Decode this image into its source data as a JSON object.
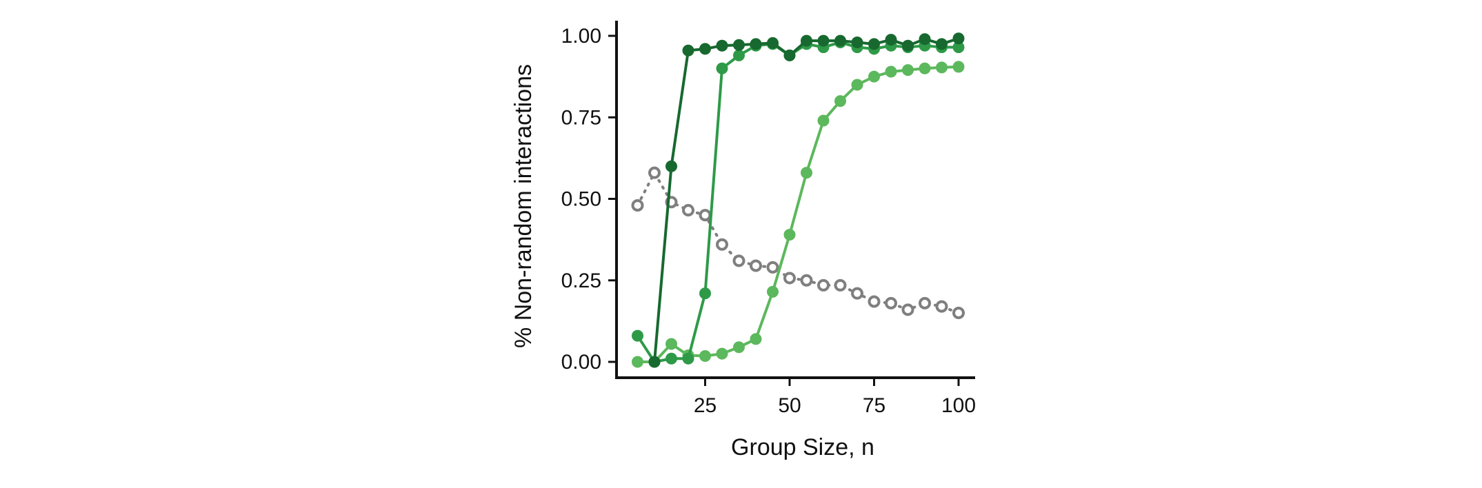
{
  "chart_data": {
    "type": "line",
    "title": "",
    "xlabel": "Group Size, n",
    "ylabel": "% Non-random interactions",
    "xlim": [
      0,
      100
    ],
    "ylim": [
      -0.04,
      1.05
    ],
    "xticks": [
      25,
      50,
      75,
      100
    ],
    "xtick_labels": [
      "25",
      "50",
      "75",
      "100"
    ],
    "yticks": [
      0.0,
      0.25,
      0.5,
      0.75,
      1.0
    ],
    "ytick_labels": [
      "0.00",
      "0.25",
      "0.50",
      "0.75",
      "1.00"
    ],
    "grid": false,
    "legend": "none",
    "x": [
      5,
      10,
      15,
      20,
      25,
      30,
      35,
      40,
      45,
      50,
      55,
      60,
      65,
      70,
      75,
      80,
      85,
      90,
      95,
      100
    ],
    "series": [
      {
        "color": "#7f7f7f",
        "style": "dotted-open-circles",
        "values": [
          0.48,
          0.58,
          0.49,
          0.465,
          0.45,
          0.36,
          0.31,
          0.295,
          0.29,
          0.257,
          0.25,
          0.235,
          0.235,
          0.21,
          0.185,
          0.18,
          0.16,
          0.18,
          0.17,
          0.15
        ]
      },
      {
        "color": "#5cb85c",
        "style": "solid-filled-circles",
        "values": [
          0.0,
          0.0,
          0.055,
          0.02,
          0.018,
          0.025,
          0.045,
          0.07,
          0.215,
          0.39,
          0.58,
          0.74,
          0.8,
          0.85,
          0.875,
          0.89,
          0.895,
          0.9,
          0.903,
          0.905
        ]
      },
      {
        "color": "#2e9a48",
        "style": "solid-filled-circles",
        "values": [
          0.08,
          0.0,
          0.01,
          0.01,
          0.21,
          0.9,
          0.94,
          0.97,
          0.975,
          0.94,
          0.975,
          0.965,
          0.98,
          0.965,
          0.96,
          0.97,
          0.965,
          0.97,
          0.965,
          0.965
        ]
      },
      {
        "color": "#17692f",
        "style": "solid-filled-circles",
        "values": [
          null,
          0.0,
          0.6,
          0.955,
          0.96,
          0.97,
          0.972,
          0.975,
          0.978,
          0.94,
          0.985,
          0.985,
          0.985,
          0.98,
          0.975,
          0.988,
          0.97,
          0.99,
          0.975,
          0.992
        ]
      }
    ]
  }
}
